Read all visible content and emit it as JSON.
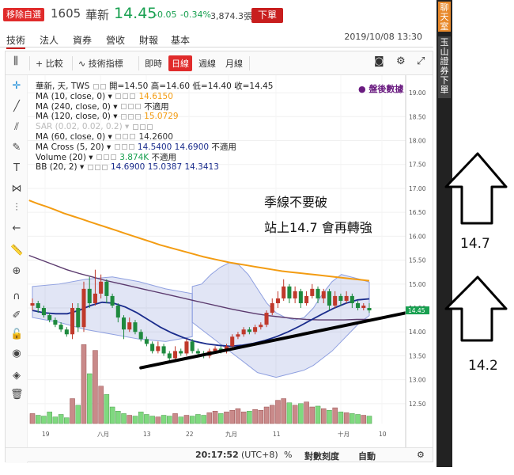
{
  "header": {
    "remove_label": "移除自選",
    "code": "1605",
    "name": "華新",
    "price": "14.45",
    "change": "-0.05",
    "change_pct": "-0.34%",
    "volume": "3,874.3張",
    "order_label": "下單"
  },
  "tabs": [
    "技術",
    "法人",
    "資券",
    "營收",
    "財報",
    "基本"
  ],
  "datetime": "2019/10/08 13:30",
  "right_strip": {
    "chat_label": "聊天室",
    "order_label": "玉山證券下單"
  },
  "toolbar": {
    "compare_label": "比較",
    "indicators_label": "技術指標",
    "periods": [
      "即時",
      "日線",
      "週線",
      "月線"
    ],
    "active_period": "日線"
  },
  "legend": {
    "title": "華新, 天, TWS",
    "open": "開=14.50",
    "high": "高=14.60",
    "low": "低=14.40",
    "close": "收=14.45",
    "rows": [
      {
        "name": "MA (10, close, 0)",
        "values": [
          "14.6150"
        ],
        "color": "#f39c12"
      },
      {
        "name": "MA (240, close, 0)",
        "values": [
          "不適用"
        ],
        "color": "#333333"
      },
      {
        "name": "MA (120, close, 0)",
        "values": [
          "15.0729"
        ],
        "color": "#f39c12"
      },
      {
        "name": "SAR (0.02, 0.02, 0.2)",
        "values": [],
        "color": "#bbbbbb"
      },
      {
        "name": "MA (60, close, 0)",
        "values": [
          "14.2600"
        ],
        "color": "#333333"
      },
      {
        "name": "MA Cross (5, 20)",
        "values": [
          "14.5400",
          "14.6900",
          "不適用"
        ],
        "color": "#1a2c8c"
      },
      {
        "name": "Volume (20)",
        "values": [
          "3.874K",
          "不適用"
        ],
        "color": "#18a050"
      },
      {
        "name": "BB (20, 2)",
        "values": [
          "14.6900",
          "15.0387",
          "14.3413"
        ],
        "color": "#1a2c8c"
      }
    ],
    "after_hours_label": "盤後數據"
  },
  "annotations": {
    "line1": "季線不要破",
    "line2": "站上14.7 會再轉強",
    "upper_level": "14.7",
    "lower_level": "14.2"
  },
  "status": {
    "time": "20:17:52",
    "tz": "(UTC+8)",
    "pct": "%",
    "log_scale": "對數刻度",
    "auto": "自動"
  },
  "chart_data": {
    "type": "candlestick",
    "y_ticks": [
      "19.00",
      "18.50",
      "18.00",
      "17.50",
      "17.00",
      "16.50",
      "16.00",
      "15.50",
      "15.00",
      "14.50",
      "14.00",
      "13.50",
      "13.00",
      "12.50"
    ],
    "x_ticks": [
      "19",
      "八月",
      "13",
      "22",
      "九月",
      "11",
      "十月",
      "10"
    ],
    "ylim": [
      12.25,
      19.2
    ],
    "last_price": "14.45",
    "candles": [
      {
        "o": 14.55,
        "c": 14.6,
        "h": 14.7,
        "l": 14.45
      },
      {
        "o": 14.6,
        "c": 14.5,
        "h": 14.65,
        "l": 14.4
      },
      {
        "o": 14.5,
        "c": 14.35,
        "h": 14.55,
        "l": 14.3
      },
      {
        "o": 14.35,
        "c": 14.25,
        "h": 14.4,
        "l": 14.2
      },
      {
        "o": 14.25,
        "c": 14.15,
        "h": 14.3,
        "l": 14.1
      },
      {
        "o": 14.15,
        "c": 14.05,
        "h": 14.2,
        "l": 14.0
      },
      {
        "o": 14.05,
        "c": 13.95,
        "h": 14.1,
        "l": 13.9
      },
      {
        "o": 13.95,
        "c": 14.5,
        "h": 14.6,
        "l": 13.85
      },
      {
        "o": 14.5,
        "c": 14.1,
        "h": 14.6,
        "l": 14.0
      },
      {
        "o": 14.1,
        "c": 14.9,
        "h": 15.05,
        "l": 14.0
      },
      {
        "o": 14.9,
        "c": 14.6,
        "h": 15.15,
        "l": 14.5
      },
      {
        "o": 14.6,
        "c": 14.8,
        "h": 15.3,
        "l": 14.55
      },
      {
        "o": 14.8,
        "c": 15.05,
        "h": 15.2,
        "l": 14.7
      },
      {
        "o": 15.05,
        "c": 14.75,
        "h": 15.1,
        "l": 14.6
      },
      {
        "o": 14.75,
        "c": 14.55,
        "h": 14.8,
        "l": 14.5
      },
      {
        "o": 14.55,
        "c": 14.3,
        "h": 14.6,
        "l": 14.2
      },
      {
        "o": 14.3,
        "c": 14.05,
        "h": 14.35,
        "l": 13.85
      },
      {
        "o": 14.05,
        "c": 14.2,
        "h": 14.3,
        "l": 14.0
      },
      {
        "o": 14.2,
        "c": 14.0,
        "h": 14.25,
        "l": 13.95
      },
      {
        "o": 14.0,
        "c": 13.85,
        "h": 14.05,
        "l": 13.8
      },
      {
        "o": 13.85,
        "c": 13.75,
        "h": 13.9,
        "l": 13.7
      },
      {
        "o": 13.75,
        "c": 13.6,
        "h": 13.8,
        "l": 13.55
      },
      {
        "o": 13.6,
        "c": 13.7,
        "h": 13.8,
        "l": 13.55
      },
      {
        "o": 13.7,
        "c": 13.55,
        "h": 13.75,
        "l": 13.5
      },
      {
        "o": 13.55,
        "c": 13.45,
        "h": 13.6,
        "l": 13.4
      },
      {
        "o": 13.45,
        "c": 13.6,
        "h": 13.7,
        "l": 13.4
      },
      {
        "o": 13.6,
        "c": 13.55,
        "h": 13.65,
        "l": 13.5
      },
      {
        "o": 13.55,
        "c": 13.8,
        "h": 13.85,
        "l": 13.5
      },
      {
        "o": 13.8,
        "c": 13.6,
        "h": 13.85,
        "l": 13.55
      },
      {
        "o": 13.6,
        "c": 13.55,
        "h": 13.65,
        "l": 13.5
      },
      {
        "o": 13.55,
        "c": 13.5,
        "h": 13.6,
        "l": 13.45
      },
      {
        "o": 13.5,
        "c": 13.6,
        "h": 13.65,
        "l": 13.45
      },
      {
        "o": 13.6,
        "c": 13.65,
        "h": 13.7,
        "l": 13.55
      },
      {
        "o": 13.65,
        "c": 13.6,
        "h": 13.7,
        "l": 13.55
      },
      {
        "o": 13.6,
        "c": 13.7,
        "h": 13.75,
        "l": 13.55
      },
      {
        "o": 13.7,
        "c": 13.9,
        "h": 13.95,
        "l": 13.65
      },
      {
        "o": 13.9,
        "c": 13.95,
        "h": 14.0,
        "l": 13.85
      },
      {
        "o": 13.95,
        "c": 14.05,
        "h": 14.1,
        "l": 13.9
      },
      {
        "o": 14.05,
        "c": 14.0,
        "h": 14.1,
        "l": 13.95
      },
      {
        "o": 14.0,
        "c": 14.1,
        "h": 14.15,
        "l": 13.95
      },
      {
        "o": 14.1,
        "c": 14.15,
        "h": 14.2,
        "l": 14.05
      },
      {
        "o": 14.15,
        "c": 14.4,
        "h": 14.45,
        "l": 14.1
      },
      {
        "o": 14.4,
        "c": 14.6,
        "h": 14.7,
        "l": 14.35
      },
      {
        "o": 14.6,
        "c": 14.7,
        "h": 14.85,
        "l": 14.5
      },
      {
        "o": 14.7,
        "c": 14.95,
        "h": 15.1,
        "l": 14.65
      },
      {
        "o": 14.95,
        "c": 14.7,
        "h": 15.0,
        "l": 14.6
      },
      {
        "o": 14.7,
        "c": 14.85,
        "h": 14.95,
        "l": 14.6
      },
      {
        "o": 14.85,
        "c": 14.6,
        "h": 14.9,
        "l": 14.5
      },
      {
        "o": 14.6,
        "c": 14.75,
        "h": 14.85,
        "l": 14.55
      },
      {
        "o": 14.75,
        "c": 14.9,
        "h": 15.0,
        "l": 14.7
      },
      {
        "o": 14.9,
        "c": 14.7,
        "h": 14.95,
        "l": 14.6
      },
      {
        "o": 14.7,
        "c": 14.85,
        "h": 14.9,
        "l": 14.6
      },
      {
        "o": 14.85,
        "c": 14.55,
        "h": 14.9,
        "l": 14.45
      },
      {
        "o": 14.55,
        "c": 14.75,
        "h": 14.85,
        "l": 14.5
      },
      {
        "o": 14.75,
        "c": 14.65,
        "h": 14.8,
        "l": 14.55
      },
      {
        "o": 14.65,
        "c": 14.75,
        "h": 14.85,
        "l": 14.6
      },
      {
        "o": 14.75,
        "c": 14.6,
        "h": 14.8,
        "l": 14.5
      },
      {
        "o": 14.6,
        "c": 14.5,
        "h": 14.65,
        "l": 14.45
      },
      {
        "o": 14.5,
        "c": 14.55,
        "h": 14.6,
        "l": 14.45
      },
      {
        "o": 14.5,
        "c": 14.45,
        "h": 14.6,
        "l": 14.4
      }
    ],
    "volume": [
      12,
      10,
      9,
      14,
      8,
      11,
      7,
      30,
      22,
      95,
      60,
      88,
      45,
      35,
      20,
      15,
      12,
      10,
      9,
      14,
      11,
      9,
      8,
      10,
      9,
      12,
      8,
      10,
      9,
      11,
      10,
      13,
      15,
      12,
      14,
      16,
      18,
      14,
      15,
      17,
      16,
      20,
      22,
      28,
      30,
      25,
      22,
      24,
      26,
      20,
      21,
      18,
      16,
      19,
      14,
      13,
      12,
      11,
      10,
      9
    ],
    "ma_120": [
      16.75,
      16.68,
      16.62,
      16.55,
      16.48,
      16.42,
      16.36,
      16.3,
      16.24,
      16.18,
      16.12,
      16.06,
      16.0,
      15.94,
      15.88,
      15.82,
      15.77,
      15.72,
      15.67,
      15.62,
      15.57,
      15.53,
      15.49,
      15.45,
      15.42,
      15.39,
      15.36,
      15.33,
      15.3,
      15.27,
      15.25,
      15.23,
      15.21,
      15.19,
      15.17,
      15.15,
      15.13,
      15.11,
      15.09,
      15.07
    ],
    "ma_60": [
      15.6,
      15.5,
      15.4,
      15.3,
      15.22,
      15.15,
      15.08,
      15.02,
      14.96,
      14.9,
      14.84,
      14.78,
      14.72,
      14.66,
      14.6,
      14.54,
      14.48,
      14.43,
      14.38,
      14.34,
      14.31,
      14.28,
      14.26,
      14.25,
      14.25,
      14.25,
      14.26,
      14.26
    ],
    "ma_20": [
      14.45,
      14.4,
      14.38,
      14.38,
      14.45,
      14.55,
      14.62,
      14.6,
      14.52,
      14.4,
      14.25,
      14.1,
      13.98,
      13.88,
      13.8,
      13.75,
      13.72,
      13.7,
      13.72,
      13.76,
      13.82,
      13.9,
      14.0,
      14.12,
      14.25,
      14.38,
      14.5,
      14.6,
      14.67,
      14.69
    ],
    "bb_upper": [
      14.95,
      15.0,
      15.2,
      15.35,
      15.45,
      15.4,
      15.2,
      14.9,
      14.6,
      14.4,
      14.3,
      14.25,
      14.3,
      14.5,
      14.8,
      15.05,
      15.2,
      15.15,
      15.1,
      15.04
    ],
    "bb_lower": [
      14.2,
      14.05,
      13.9,
      13.75,
      13.6,
      13.45,
      13.3,
      13.15,
      13.1,
      13.05,
      13.1,
      13.15,
      13.2,
      13.3,
      13.45,
      13.6,
      13.8,
      14.0,
      14.2,
      14.34
    ],
    "support_line": [
      13.25,
      14.45
    ]
  }
}
